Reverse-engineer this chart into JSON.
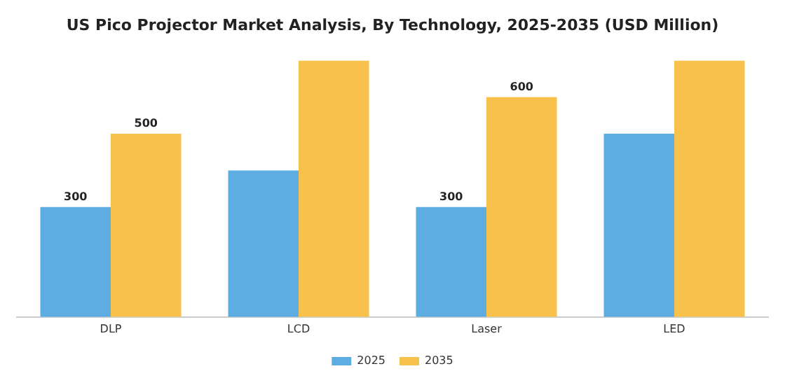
{
  "chart_data": {
    "type": "bar",
    "title": "US Pico Projector Market Analysis, By Technology, 2025-2035 (USD Million)",
    "categories": [
      "DLP",
      "LCD",
      "Laser",
      "LED"
    ],
    "series": [
      {
        "name": "2025",
        "color": "#5dade2",
        "values": [
          300,
          400,
          300,
          500
        ],
        "value_labels": [
          "300",
          null,
          "300",
          null
        ]
      },
      {
        "name": "2035",
        "color": "#f7c14c",
        "values": [
          500,
          700,
          600,
          700
        ],
        "value_labels": [
          "500",
          null,
          "600",
          null
        ]
      }
    ],
    "legend": "bottom",
    "grid": false,
    "tick_labels": "x"
  }
}
